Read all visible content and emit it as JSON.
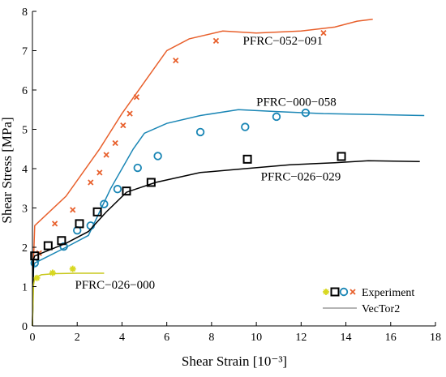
{
  "chart_data": {
    "type": "line",
    "xlabel": "Shear Strain [10⁻³]",
    "ylabel": "Shear Stress [MPa]",
    "xlim": [
      0,
      18
    ],
    "ylim": [
      0,
      8
    ],
    "x_ticks": [
      "0",
      "2",
      "4",
      "6",
      "8",
      "10",
      "12",
      "14",
      "16",
      "18"
    ],
    "y_ticks": [
      "0",
      "1",
      "2",
      "3",
      "4",
      "5",
      "6",
      "7",
      "8"
    ],
    "grid": false,
    "legend_position": "bottom-right",
    "legend": {
      "experiment": "Experiment",
      "vector2": "VecTor2"
    },
    "series": [
      {
        "name": "PFRC−052−091",
        "color": "#E8602C",
        "marker_color": "#E8602C",
        "marker": "x",
        "label_at": [
          9.4,
          7.15
        ],
        "vector2": [
          [
            0,
            0
          ],
          [
            0.05,
            1.7
          ],
          [
            0.1,
            2.55
          ],
          [
            1.5,
            3.3
          ],
          [
            3,
            4.5
          ],
          [
            4,
            5.4
          ],
          [
            6,
            7.0
          ],
          [
            7,
            7.3
          ],
          [
            8.5,
            7.5
          ],
          [
            10,
            7.45
          ],
          [
            12,
            7.5
          ],
          [
            13.5,
            7.6
          ],
          [
            14.5,
            7.75
          ],
          [
            15.2,
            7.8
          ]
        ],
        "experiment": [
          [
            0.3,
            1.85
          ],
          [
            1.0,
            2.6
          ],
          [
            1.8,
            2.95
          ],
          [
            2.6,
            3.65
          ],
          [
            3.0,
            3.9
          ],
          [
            3.3,
            4.35
          ],
          [
            3.7,
            4.65
          ],
          [
            4.05,
            5.1
          ],
          [
            4.35,
            5.4
          ],
          [
            4.65,
            5.82
          ],
          [
            6.4,
            6.75
          ],
          [
            8.2,
            7.25
          ],
          [
            13.0,
            7.45
          ]
        ]
      },
      {
        "name": "PFRC−000−058",
        "color": "#1A86B5",
        "marker_color": "#1A86B5",
        "marker": "o",
        "label_at": [
          10.0,
          5.6
        ],
        "vector2": [
          [
            0,
            0
          ],
          [
            0.05,
            1.45
          ],
          [
            0.1,
            1.6
          ],
          [
            1.5,
            2.0
          ],
          [
            2.5,
            2.3
          ],
          [
            3.5,
            3.5
          ],
          [
            4.5,
            4.5
          ],
          [
            5,
            4.9
          ],
          [
            6,
            5.15
          ],
          [
            7.5,
            5.35
          ],
          [
            9.2,
            5.5
          ],
          [
            11,
            5.45
          ],
          [
            13,
            5.4
          ],
          [
            15,
            5.38
          ],
          [
            17.5,
            5.35
          ]
        ],
        "experiment": [
          [
            0.1,
            1.6
          ],
          [
            1.4,
            2.02
          ],
          [
            2.0,
            2.43
          ],
          [
            2.6,
            2.55
          ],
          [
            3.2,
            3.1
          ],
          [
            3.8,
            3.48
          ],
          [
            4.7,
            4.02
          ],
          [
            5.6,
            4.32
          ],
          [
            7.5,
            4.93
          ],
          [
            9.5,
            5.06
          ],
          [
            10.9,
            5.32
          ],
          [
            12.2,
            5.42
          ]
        ]
      },
      {
        "name": "PFRC−026−029",
        "color": "#000000",
        "marker_color": "#000000",
        "marker": "s",
        "label_at": [
          10.2,
          3.7
        ],
        "vector2": [
          [
            0,
            0
          ],
          [
            0.05,
            1.7
          ],
          [
            0.1,
            1.78
          ],
          [
            1.5,
            2.1
          ],
          [
            2.5,
            2.4
          ],
          [
            3.3,
            2.9
          ],
          [
            4.2,
            3.4
          ],
          [
            5.5,
            3.65
          ],
          [
            7.5,
            3.9
          ],
          [
            9.5,
            4.0
          ],
          [
            11.5,
            4.1
          ],
          [
            13.5,
            4.15
          ],
          [
            15,
            4.2
          ],
          [
            17.3,
            4.18
          ]
        ],
        "experiment": [
          [
            0.1,
            1.78
          ],
          [
            0.7,
            2.04
          ],
          [
            1.3,
            2.17
          ],
          [
            2.1,
            2.6
          ],
          [
            2.9,
            2.9
          ],
          [
            4.2,
            3.43
          ],
          [
            5.3,
            3.65
          ],
          [
            9.6,
            4.24
          ],
          [
            13.8,
            4.31
          ]
        ]
      },
      {
        "name": "PFRC−026−000",
        "color": "#C8C81E",
        "marker_color": "#D8D820",
        "marker": "*",
        "label_at": [
          1.9,
          0.95
        ],
        "vector2": [
          [
            0,
            0
          ],
          [
            0.05,
            1.05
          ],
          [
            0.1,
            1.22
          ],
          [
            0.4,
            1.3
          ],
          [
            1.0,
            1.33
          ],
          [
            2.0,
            1.34
          ],
          [
            3.2,
            1.34
          ]
        ],
        "experiment": [
          [
            0.2,
            1.22
          ],
          [
            0.9,
            1.35
          ],
          [
            1.8,
            1.45
          ]
        ]
      }
    ]
  }
}
